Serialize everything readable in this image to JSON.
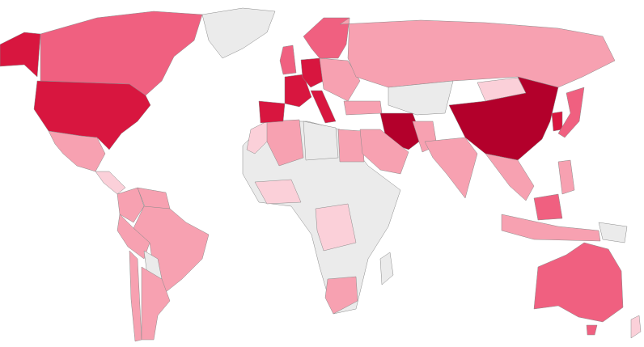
{
  "map": {
    "type": "choropleth",
    "no_data_color": "#ebebeb",
    "scale_colors": [
      "#fbd0d9",
      "#f7a1b1",
      "#f06080",
      "#d8163f",
      "#b3002b"
    ],
    "regions": {
      "greenland": "#ebebeb",
      "alaska": "#d8163f",
      "canada": "#f06080",
      "usa": "#d8163f",
      "mexico": "#f7a1b1",
      "central_america": "#fbd0d9",
      "colombia": "#f7a1b1",
      "venezuela": "#f7a1b1",
      "brazil": "#f7a1b1",
      "peru": "#f7a1b1",
      "bolivia": "#ebebeb",
      "chile": "#f7a1b1",
      "argentina": "#f7a1b1",
      "africa_rest": "#ebebeb",
      "morocco": "#fbd0d9",
      "algeria": "#f7a1b1",
      "libya": "#ebebeb",
      "egypt": "#f7a1b1",
      "west_africa": "#fbd0d9",
      "drc": "#fbd0d9",
      "south_africa": "#f7a1b1",
      "madagascar": "#ebebeb",
      "uk": "#f06080",
      "scandinavia": "#f06080",
      "france": "#d8163f",
      "spain": "#d8163f",
      "germany": "#d8163f",
      "italy": "#d8163f",
      "eastern_europe": "#f7a1b1",
      "turkey": "#f7a1b1",
      "russia": "#f7a1b1",
      "kazakhstan": "#ebebeb",
      "mongolia": "#fbd0d9",
      "china": "#b3002b",
      "iran": "#b3002b",
      "saudi_arabia": "#f7a1b1",
      "pakistan": "#f7a1b1",
      "india": "#f7a1b1",
      "southeast_asia": "#f7a1b1",
      "korea": "#d8163f",
      "japan": "#f06080",
      "indonesia": "#f7a1b1",
      "borneo": "#f06080",
      "philippines": "#f7a1b1",
      "png": "#ebebeb",
      "australia": "#f06080",
      "tasmania": "#f06080",
      "new_zealand": "#fbd0d9"
    }
  }
}
